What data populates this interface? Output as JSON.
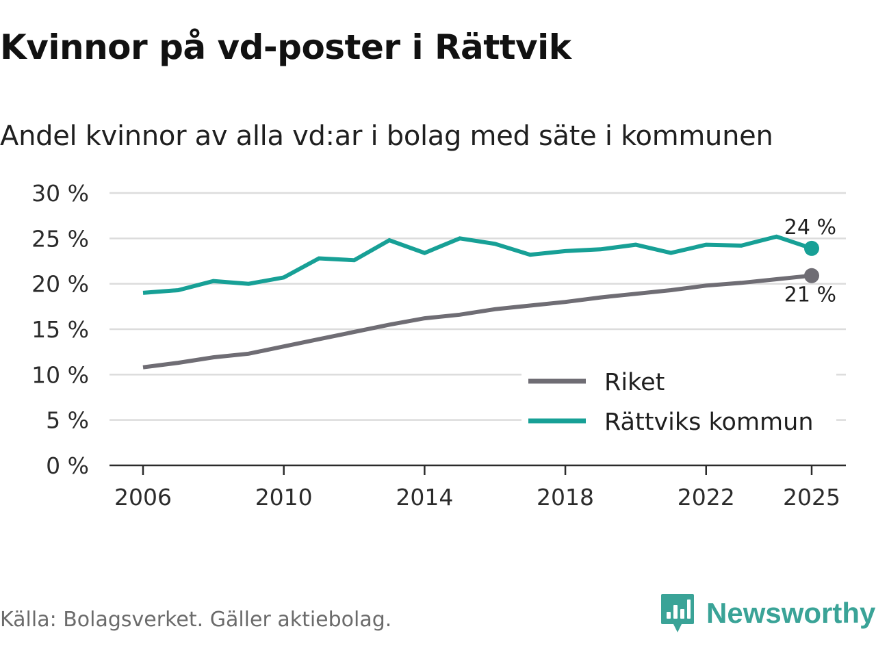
{
  "title": "Kvinnor på vd-poster i Rättvik",
  "subtitle": "Andel kvinnor av alla vd:ar i bolag med säte i kommunen",
  "source": "Källa: Bolagsverket. Gäller aktiebolag.",
  "brand": {
    "name": "Newsworthy",
    "icon": "newsworthy-logo-icon",
    "color": "#3aa397"
  },
  "chart_data": {
    "type": "line",
    "x": [
      2006,
      2007,
      2008,
      2009,
      2010,
      2011,
      2012,
      2013,
      2014,
      2015,
      2016,
      2017,
      2018,
      2019,
      2020,
      2021,
      2022,
      2023,
      2024,
      2025
    ],
    "xlim": [
      2006,
      2025
    ],
    "x_tick_values": [
      2006,
      2010,
      2014,
      2018,
      2022,
      2025
    ],
    "x_tick_labels": [
      "2006",
      "2010",
      "2014",
      "2018",
      "2022",
      "2025"
    ],
    "ylim": [
      0,
      30
    ],
    "y_tick_values": [
      0,
      5,
      10,
      15,
      20,
      25,
      30
    ],
    "y_tick_labels": [
      "0 %",
      "5 %",
      "10 %",
      "15 %",
      "20 %",
      "25 %",
      "30 %"
    ],
    "grid": true,
    "legend_position": "bottom-right",
    "series": [
      {
        "name": "Riket",
        "color": "#6f6d74",
        "end_label": "21 %",
        "values": [
          10.8,
          11.3,
          11.9,
          12.3,
          13.1,
          13.9,
          14.7,
          15.5,
          16.2,
          16.6,
          17.2,
          17.6,
          18.0,
          18.5,
          18.9,
          19.3,
          19.8,
          20.1,
          20.5,
          20.9
        ]
      },
      {
        "name": "Rättviks kommun",
        "color": "#17a096",
        "end_label": "24 %",
        "values": [
          19.0,
          19.3,
          20.3,
          20.0,
          20.7,
          22.8,
          22.6,
          24.8,
          23.4,
          25.0,
          24.4,
          23.2,
          23.6,
          23.8,
          24.3,
          23.4,
          24.3,
          24.2,
          25.2,
          23.9
        ]
      }
    ]
  }
}
